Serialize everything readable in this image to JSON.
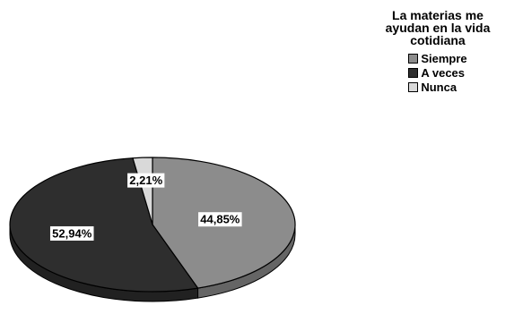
{
  "chart_data": {
    "type": "pie",
    "title_lines": [
      "La materias me",
      "ayudan en la vida",
      "cotidiana"
    ],
    "categories": [
      "Siempre",
      "A veces",
      "Nunca"
    ],
    "values": [
      44.85,
      52.94,
      2.21
    ],
    "labels": [
      "44,85%",
      "52,94%",
      "2,21%"
    ],
    "colors": [
      "#8c8c8c",
      "#2e2e2e",
      "#d9d9d9"
    ],
    "legend_placement": "top-right",
    "style": "3d"
  }
}
